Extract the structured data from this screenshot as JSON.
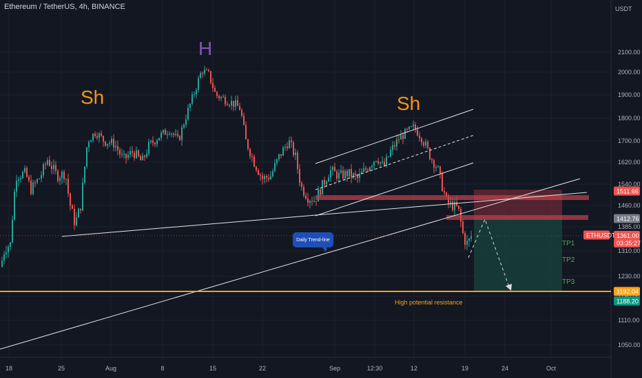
{
  "symbol_title": "Ethereum / TetherUS, 4h, BINANCE",
  "currency_label": "USDT",
  "colors": {
    "background": "#131722",
    "up": "#26a69a",
    "down": "#ef5350",
    "grid": "#1e222d",
    "axis_text": "#b2b5be",
    "pattern_shoulder": "#f7931a",
    "pattern_head": "#7e57c2",
    "resistance": "#f7a21b",
    "stop_zone": "#8a2e3c",
    "target_zone": "#173f3a",
    "tp_text": "#4caf50",
    "callout": "#1e4fb8"
  },
  "chart_data": {
    "type": "candlestick",
    "title": "Ethereum / TetherUS, 4h, BINANCE",
    "y_axis": {
      "unit": "USDT",
      "ticks": [
        1050,
        1110,
        1190,
        1230,
        1310,
        1385,
        1460,
        1540,
        1620,
        1700,
        1800,
        1900,
        2000,
        2100
      ],
      "tick_labels": [
        "1050.00",
        "1110.00",
        "1190.00",
        "1230.00",
        "1310.00",
        "1385.00",
        "1460.00",
        "1540.00",
        "1620.00",
        "1700.00",
        "1800.00",
        "1900.00",
        "2000.00",
        "2100.00"
      ]
    },
    "x_axis": {
      "tick_labels": [
        "18",
        "25",
        "Aug",
        "8",
        "15",
        "22",
        "Sep",
        "12:30",
        "12",
        "19",
        "24",
        "Oct"
      ]
    },
    "price_series_approx": [
      {
        "label": "18",
        "close": 1330
      },
      {
        "label": "25",
        "close": 1390
      },
      {
        "label": "Aug",
        "close": 1690
      },
      {
        "label": "8",
        "close": 1720
      },
      {
        "label": "15",
        "close": 1900
      },
      {
        "label": "22",
        "close": 1570
      },
      {
        "label": "Sep",
        "close": 1580
      },
      {
        "label": "12:30",
        "close": 1600
      },
      {
        "label": "12",
        "close": 1700
      },
      {
        "label": "19",
        "close": 1361
      }
    ],
    "price_labels": [
      {
        "text": "1511.66",
        "value": 1511.66,
        "color": "#ef5350"
      },
      {
        "text": "1412.76",
        "value": 1412.76,
        "color": "#787b86"
      },
      {
        "text": "ETHUSDT",
        "value": 1361,
        "color": "#ef5350"
      },
      {
        "text": "1361.00",
        "value": 1361,
        "color": "#ef5350"
      },
      {
        "text": "03:35:27",
        "value": 1348,
        "color": "#ef5350"
      },
      {
        "text": "1192.04",
        "value": 1192.04,
        "color": "#f7a21b"
      },
      {
        "text": "1188.20",
        "value": 1188.2,
        "color": "#089981"
      }
    ],
    "annotations": {
      "left_shoulder": "Sh",
      "head": "H",
      "right_shoulder": "Sh",
      "callout": "Daily Trend-line",
      "resistance": "High potential resistance",
      "tp1": "TP1",
      "tp2": "TP2",
      "tp3": "TP3"
    },
    "levels": {
      "resistance": 1192.04,
      "zone_top": 1511.66,
      "entry": 1412.76,
      "current": 1361
    }
  }
}
